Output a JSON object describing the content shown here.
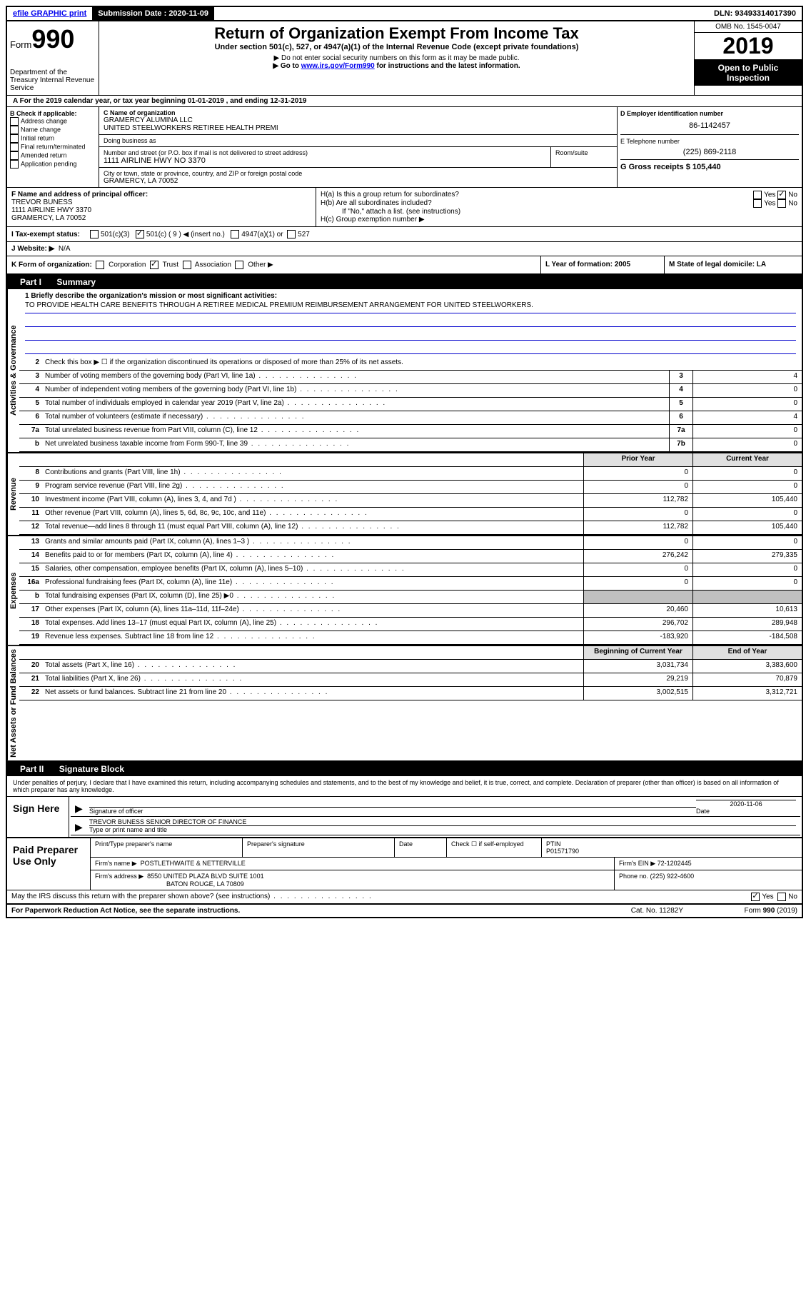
{
  "topbar": {
    "efile": "efile GRAPHIC print",
    "sub_label": "Submission Date : 2020-11-09",
    "dln": "DLN: 93493314017390"
  },
  "header": {
    "form_word": "Form",
    "form_num": "990",
    "dept": "Department of the Treasury\nInternal Revenue Service",
    "title": "Return of Organization Exempt From Income Tax",
    "sub1": "Under section 501(c), 527, or 4947(a)(1) of the Internal Revenue Code (except private foundations)",
    "sub2": "▶ Do not enter social security numbers on this form as it may be made public.",
    "sub3_pre": "▶ Go to ",
    "sub3_link": "www.irs.gov/Form990",
    "sub3_post": " for instructions and the latest information.",
    "omb": "OMB No. 1545-0047",
    "year": "2019",
    "inspection": "Open to Public Inspection"
  },
  "line_a": "A For the 2019 calendar year, or tax year beginning 01-01-2019    , and ending 12-31-2019",
  "section_b": {
    "label": "B Check if applicable:",
    "items": [
      "Address change",
      "Name change",
      "Initial return",
      "Final return/terminated",
      "Amended return",
      "Application pending"
    ]
  },
  "section_c": {
    "name_label": "C Name of organization",
    "name1": "GRAMERCY ALUMINA LLC",
    "name2": "UNITED STEELWORKERS RETIREE HEALTH PREMI",
    "dba_label": "Doing business as",
    "addr_label": "Number and street (or P.O. box if mail is not delivered to street address)",
    "addr": "1111 AIRLINE HWY NO 3370",
    "room_label": "Room/suite",
    "city_label": "City or town, state or province, country, and ZIP or foreign postal code",
    "city": "GRAMERCY, LA  70052"
  },
  "section_d": {
    "ein_label": "D Employer identification number",
    "ein": "86-1142457",
    "phone_label": "E Telephone number",
    "phone": "(225) 869-2118",
    "gross_label": "G Gross receipts $ 105,440"
  },
  "section_f": {
    "label": "F  Name and address of principal officer:",
    "name": "TREVOR BUNESS",
    "addr1": "1111 AIRLINE HWY 3370",
    "addr2": "GRAMERCY, LA  70052"
  },
  "section_h": {
    "ha": "H(a)  Is this a group return for subordinates?",
    "hb": "H(b)  Are all subordinates included?",
    "hb_note": "If \"No,\" attach a list. (see instructions)",
    "hc": "H(c)  Group exemption number ▶"
  },
  "section_i": {
    "label": "I  Tax-exempt status:",
    "opt1": "501(c)(3)",
    "opt2": "501(c) ( 9 ) ◀ (insert no.)",
    "opt3": "4947(a)(1) or",
    "opt4": "527"
  },
  "section_j": {
    "label": "J  Website: ▶",
    "value": "N/A"
  },
  "section_k": {
    "label": "K Form of organization:",
    "opts": [
      "Corporation",
      "Trust",
      "Association",
      "Other ▶"
    ],
    "l_label": "L Year of formation: 2005",
    "m_label": "M State of legal domicile: LA"
  },
  "part1": {
    "header": "Part I",
    "title": "Summary",
    "mission_label": "1  Briefly describe the organization's mission or most significant activities:",
    "mission": "TO PROVIDE HEALTH CARE BENEFITS THROUGH A RETIREE MEDICAL PREMIUM REIMBURSEMENT ARRANGEMENT FOR UNITED STEELWORKERS.",
    "line2": "Check this box ▶ ☐  if the organization discontinued its operations or disposed of more than 25% of its net assets.",
    "groups": {
      "gov": "Activities & Governance",
      "rev": "Revenue",
      "exp": "Expenses",
      "net": "Net Assets or Fund Balances"
    },
    "cols": {
      "prior": "Prior Year",
      "current": "Current Year",
      "begin": "Beginning of Current Year",
      "end": "End of Year"
    },
    "rows_single": [
      {
        "n": "3",
        "d": "Number of voting members of the governing body (Part VI, line 1a)",
        "box": "3",
        "v": "4"
      },
      {
        "n": "4",
        "d": "Number of independent voting members of the governing body (Part VI, line 1b)",
        "box": "4",
        "v": "0"
      },
      {
        "n": "5",
        "d": "Total number of individuals employed in calendar year 2019 (Part V, line 2a)",
        "box": "5",
        "v": "0"
      },
      {
        "n": "6",
        "d": "Total number of volunteers (estimate if necessary)",
        "box": "6",
        "v": "4"
      },
      {
        "n": "7a",
        "d": "Total unrelated business revenue from Part VIII, column (C), line 12",
        "box": "7a",
        "v": "0"
      },
      {
        "n": "b",
        "d": "Net unrelated business taxable income from Form 990-T, line 39",
        "box": "7b",
        "v": "0"
      }
    ],
    "rows_rev": [
      {
        "n": "8",
        "d": "Contributions and grants (Part VIII, line 1h)",
        "p": "0",
        "c": "0"
      },
      {
        "n": "9",
        "d": "Program service revenue (Part VIII, line 2g)",
        "p": "0",
        "c": "0"
      },
      {
        "n": "10",
        "d": "Investment income (Part VIII, column (A), lines 3, 4, and 7d )",
        "p": "112,782",
        "c": "105,440"
      },
      {
        "n": "11",
        "d": "Other revenue (Part VIII, column (A), lines 5, 6d, 8c, 9c, 10c, and 11e)",
        "p": "0",
        "c": "0"
      },
      {
        "n": "12",
        "d": "Total revenue—add lines 8 through 11 (must equal Part VIII, column (A), line 12)",
        "p": "112,782",
        "c": "105,440"
      }
    ],
    "rows_exp": [
      {
        "n": "13",
        "d": "Grants and similar amounts paid (Part IX, column (A), lines 1–3 )",
        "p": "0",
        "c": "0"
      },
      {
        "n": "14",
        "d": "Benefits paid to or for members (Part IX, column (A), line 4)",
        "p": "276,242",
        "c": "279,335"
      },
      {
        "n": "15",
        "d": "Salaries, other compensation, employee benefits (Part IX, column (A), lines 5–10)",
        "p": "0",
        "c": "0"
      },
      {
        "n": "16a",
        "d": "Professional fundraising fees (Part IX, column (A), line 11e)",
        "p": "0",
        "c": "0"
      },
      {
        "n": "b",
        "d": "Total fundraising expenses (Part IX, column (D), line 25) ▶0",
        "p": "",
        "c": "",
        "shaded": true
      },
      {
        "n": "17",
        "d": "Other expenses (Part IX, column (A), lines 11a–11d, 11f–24e)",
        "p": "20,460",
        "c": "10,613"
      },
      {
        "n": "18",
        "d": "Total expenses. Add lines 13–17 (must equal Part IX, column (A), line 25)",
        "p": "296,702",
        "c": "289,948"
      },
      {
        "n": "19",
        "d": "Revenue less expenses. Subtract line 18 from line 12",
        "p": "-183,920",
        "c": "-184,508"
      }
    ],
    "rows_net": [
      {
        "n": "20",
        "d": "Total assets (Part X, line 16)",
        "p": "3,031,734",
        "c": "3,383,600"
      },
      {
        "n": "21",
        "d": "Total liabilities (Part X, line 26)",
        "p": "29,219",
        "c": "70,879"
      },
      {
        "n": "22",
        "d": "Net assets or fund balances. Subtract line 21 from line 20",
        "p": "3,002,515",
        "c": "3,312,721"
      }
    ]
  },
  "part2": {
    "header": "Part II",
    "title": "Signature Block",
    "declaration": "Under penalties of perjury, I declare that I have examined this return, including accompanying schedules and statements, and to the best of my knowledge and belief, it is true, correct, and complete. Declaration of preparer (other than officer) is based on all information of which preparer has any knowledge.",
    "sign_label": "Sign Here",
    "sig_officer": "Signature of officer",
    "sig_date": "2020-11-06",
    "sig_date_label": "Date",
    "sig_name": "TREVOR BUNESS SENIOR DIRECTOR OF FINANCE",
    "sig_name_label": "Type or print name and title",
    "paid_label": "Paid Preparer Use Only",
    "prep_name_label": "Print/Type preparer's name",
    "prep_sig_label": "Preparer's signature",
    "prep_date_label": "Date",
    "prep_check": "Check ☐ if self-employed",
    "ptin_label": "PTIN",
    "ptin": "P01571790",
    "firm_name_label": "Firm's name    ▶",
    "firm_name": "POSTLETHWAITE & NETTERVILLE",
    "firm_ein_label": "Firm's EIN ▶ 72-1202445",
    "firm_addr_label": "Firm's address ▶",
    "firm_addr1": "8550 UNITED PLAZA BLVD SUITE 1001",
    "firm_addr2": "BATON ROUGE, LA  70809",
    "firm_phone": "Phone no. (225) 922-4600",
    "discuss": "May the IRS discuss this return with the preparer shown above? (see instructions)"
  },
  "footer": {
    "left": "For Paperwork Reduction Act Notice, see the separate instructions.",
    "center": "Cat. No. 11282Y",
    "right": "Form 990 (2019)"
  }
}
